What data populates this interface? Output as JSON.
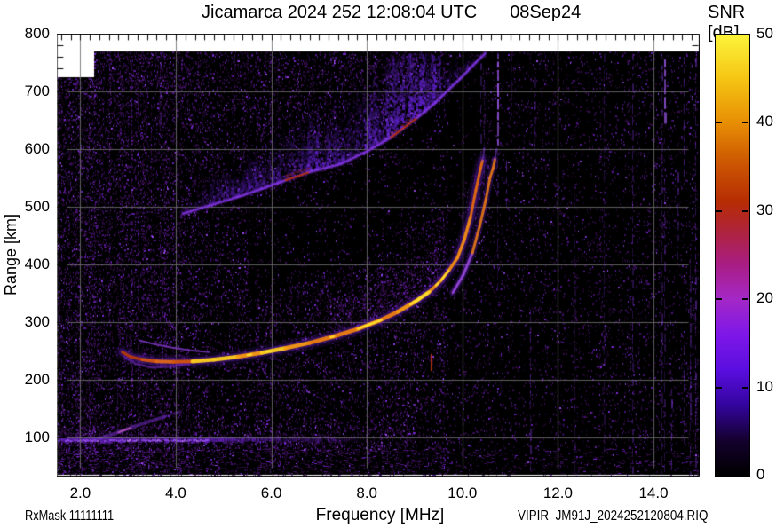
{
  "header": {
    "title_left": "Jicamarca 2024 252 12:08:04 UTC",
    "title_right": "08Sep24"
  },
  "colorbar": {
    "label": "SNR [dB]",
    "min_db": 0,
    "max_db": 50,
    "tick_values": [
      0,
      10,
      20,
      30,
      40,
      50
    ],
    "tick_labels": [
      "0",
      "10",
      "20",
      "30",
      "40",
      "50"
    ],
    "gradient_stops": [
      {
        "db": 0,
        "color": "#000000"
      },
      {
        "db": 4,
        "color": "#14012e"
      },
      {
        "db": 8,
        "color": "#33049e"
      },
      {
        "db": 12,
        "color": "#5a0edf"
      },
      {
        "db": 16,
        "color": "#7e17e8"
      },
      {
        "db": 20,
        "color": "#a428c6"
      },
      {
        "db": 24,
        "color": "#a91d83"
      },
      {
        "db": 28,
        "color": "#b02437"
      },
      {
        "db": 31,
        "color": "#b62c04"
      },
      {
        "db": 36,
        "color": "#cf5c02"
      },
      {
        "db": 40,
        "color": "#e88e04"
      },
      {
        "db": 45,
        "color": "#f5c514"
      },
      {
        "db": 50,
        "color": "#fcf43a"
      }
    ]
  },
  "axes": {
    "x": {
      "label": "Frequency [MHz]",
      "min": 1.5,
      "max": 15.0,
      "tick_values": [
        2.0,
        4.0,
        6.0,
        8.0,
        10.0,
        12.0,
        14.0
      ],
      "tick_labels": [
        "2.0",
        "4.0",
        "6.0",
        "8.0",
        "10.0",
        "12.0",
        "14.0"
      ],
      "minor_step": 0.2
    },
    "y": {
      "label": "Range [km]",
      "min": 30,
      "max": 800,
      "tick_values": [
        100,
        200,
        300,
        400,
        500,
        600,
        700,
        800
      ],
      "tick_labels": [
        "100",
        "200",
        "300",
        "400",
        "500",
        "600",
        "700",
        "800"
      ],
      "minor_step": 20
    }
  },
  "footer": {
    "left_text": "RxMask 11111111",
    "right_text": "VIPIR  JM91J_2024252120804.RIQ"
  },
  "chart_data": {
    "type": "heatmap",
    "description": "VIPIR digital ionosonde ionogram: echo SNR [dB] versus sounding frequency [MHz] and virtual range [km]; black/violet speckle background noise, bright O/X-mode F-layer traces with critical frequency near 10.4-10.7 MHz, diffuse second-hop spread-F cloud above 490 km, 100 km E-region band, and vertical RFI stripes.",
    "x_unit": "MHz",
    "y_unit": "km",
    "z_unit": "dB",
    "xlim": [
      1.5,
      15.0
    ],
    "ylim": [
      30,
      800
    ],
    "zlim": [
      0,
      50
    ],
    "grid": true,
    "legend_position": "none",
    "series": [
      {
        "name": "f_trace_o_mode",
        "approx_snr_db": 45,
        "points": [
          [
            2.88,
            248
          ],
          [
            3.05,
            240
          ],
          [
            3.3,
            235
          ],
          [
            3.6,
            232
          ],
          [
            3.95,
            231
          ],
          [
            4.35,
            232
          ],
          [
            4.8,
            235
          ],
          [
            5.3,
            240
          ],
          [
            5.8,
            247
          ],
          [
            6.3,
            255
          ],
          [
            6.8,
            264
          ],
          [
            7.3,
            275
          ],
          [
            7.8,
            288
          ],
          [
            8.25,
            302
          ],
          [
            8.65,
            318
          ],
          [
            9.0,
            335
          ],
          [
            9.3,
            352
          ],
          [
            9.55,
            372
          ],
          [
            9.72,
            390
          ],
          [
            9.9,
            412
          ],
          [
            10.04,
            443
          ],
          [
            10.17,
            482
          ],
          [
            10.28,
            528
          ],
          [
            10.38,
            566
          ],
          [
            10.42,
            580
          ]
        ]
      },
      {
        "name": "f_trace_x_mode",
        "approx_snr_db": 36,
        "points": [
          [
            9.8,
            351
          ],
          [
            10.02,
            382
          ],
          [
            10.21,
            420
          ],
          [
            10.36,
            466
          ],
          [
            10.49,
            512
          ],
          [
            10.58,
            551
          ],
          [
            10.64,
            566
          ],
          [
            10.68,
            582
          ]
        ]
      },
      {
        "name": "leading_edge_branch",
        "approx_snr_db": 16,
        "points": [
          [
            3.25,
            268
          ],
          [
            3.55,
            262
          ],
          [
            3.9,
            256
          ],
          [
            4.3,
            251
          ],
          [
            4.7,
            248
          ]
        ]
      },
      {
        "name": "hook_lower_fringe",
        "approx_snr_db": 14,
        "points": [
          [
            2.92,
            240
          ],
          [
            3.15,
            228
          ],
          [
            3.5,
            221
          ],
          [
            3.9,
            223
          ],
          [
            4.3,
            228
          ]
        ]
      },
      {
        "name": "second_hop_spread_f_edge",
        "approx_snr_db": 22,
        "points": [
          [
            4.15,
            488
          ],
          [
            4.7,
            502
          ],
          [
            5.3,
            517
          ],
          [
            5.8,
            531
          ],
          [
            6.3,
            546
          ],
          [
            6.8,
            560
          ],
          [
            7.45,
            574
          ],
          [
            8.0,
            596
          ],
          [
            8.5,
            620
          ],
          [
            9.05,
            654
          ],
          [
            9.4,
            678
          ],
          [
            9.65,
            698
          ],
          [
            9.95,
            722
          ],
          [
            10.28,
            750
          ],
          [
            10.48,
            766
          ]
        ]
      },
      {
        "name": "e_region_band",
        "approx_snr_db": 14,
        "points": [
          [
            1.55,
            100
          ],
          [
            2.5,
            100
          ],
          [
            3.5,
            100
          ],
          [
            4.6,
            100
          ],
          [
            5.5,
            101
          ],
          [
            6.6,
            102
          ],
          [
            7.8,
            102
          ]
        ]
      },
      {
        "name": "slant_echo",
        "approx_snr_db": 18,
        "points": [
          [
            2.36,
            97
          ],
          [
            2.8,
            109
          ],
          [
            3.3,
            124
          ],
          [
            3.76,
            136
          ],
          [
            4.1,
            146
          ]
        ]
      }
    ],
    "diffuse_regions": [
      {
        "name": "spread_f_cloud",
        "x_range_mhz": [
          4.15,
          10.5
        ],
        "km_above_edge": 130,
        "snr_db": "5-20"
      },
      {
        "name": "background_noise_speckle",
        "x_range_mhz": [
          1.5,
          15.0
        ],
        "y_range_km": [
          30,
          770
        ],
        "snr_db": "0-12"
      }
    ],
    "rfi_vertical_lines": [
      {
        "f": 2.77,
        "km": [
          35,
          200
        ],
        "strength": 0.3,
        "hue": "purple"
      },
      {
        "f": 3.67,
        "km": [
          640,
          760
        ],
        "strength": 0.28,
        "hue": "purple"
      },
      {
        "f": 5.21,
        "km": [
          550,
          765
        ],
        "strength": 0.3,
        "hue": "purple"
      },
      {
        "f": 6.73,
        "km": [
          115,
          185
        ],
        "strength": 0.3,
        "hue": "purple"
      },
      {
        "f": 8.13,
        "km": [
          640,
          765
        ],
        "strength": 0.28,
        "hue": "purple"
      },
      {
        "f": 9.34,
        "km": [
          215,
          245
        ],
        "strength": 0.9,
        "hue": "red"
      },
      {
        "f": 10.38,
        "km": [
          580,
          765
        ],
        "strength": 0.4,
        "hue": "purple"
      },
      {
        "f": 10.45,
        "km": [
          545,
          720
        ],
        "strength": 0.3,
        "hue": "purple"
      },
      {
        "f": 10.73,
        "km": [
          615,
          765
        ],
        "strength": 0.85,
        "hue": "bright"
      },
      {
        "f": 10.73,
        "km": [
          350,
          600
        ],
        "strength": 0.3,
        "hue": "purple"
      },
      {
        "f": 10.91,
        "km": [
          505,
          580
        ],
        "strength": 0.55,
        "hue": "purple"
      },
      {
        "f": 11.02,
        "km": [
          650,
          765
        ],
        "strength": 0.3,
        "hue": "purple"
      },
      {
        "f": 11.42,
        "km": [
          40,
          310
        ],
        "strength": 0.38,
        "hue": "purple"
      },
      {
        "f": 11.51,
        "km": [
          550,
          725
        ],
        "strength": 0.3,
        "hue": "purple"
      },
      {
        "f": 12.35,
        "km": [
          40,
          540
        ],
        "strength": 0.22,
        "hue": "purple"
      },
      {
        "f": 12.96,
        "km": [
          40,
          765
        ],
        "strength": 0.28,
        "hue": "purple"
      },
      {
        "f": 13.55,
        "km": [
          40,
          765
        ],
        "strength": 0.4,
        "hue": "purple"
      },
      {
        "f": 14.17,
        "km": [
          40,
          765
        ],
        "strength": 0.32,
        "hue": "purple"
      },
      {
        "f": 14.22,
        "km": [
          640,
          755
        ],
        "strength": 0.85,
        "hue": "bright"
      },
      {
        "f": 14.22,
        "km": [
          40,
          620
        ],
        "strength": 0.32,
        "hue": "purple"
      },
      {
        "f": 14.37,
        "km": [
          35,
          185
        ],
        "strength": 0.55,
        "hue": "purple"
      },
      {
        "f": 14.5,
        "km": [
          400,
          560
        ],
        "strength": 0.38,
        "hue": "purple"
      },
      {
        "f": 14.63,
        "km": [
          560,
          760
        ],
        "strength": 0.45,
        "hue": "purple"
      },
      {
        "f": 14.63,
        "km": [
          95,
          260
        ],
        "strength": 0.42,
        "hue": "purple"
      },
      {
        "f": 14.76,
        "km": [
          35,
          410
        ],
        "strength": 0.36,
        "hue": "purple"
      },
      {
        "f": 14.87,
        "km": [
          35,
          760
        ],
        "strength": 0.45,
        "hue": "purple"
      }
    ]
  }
}
